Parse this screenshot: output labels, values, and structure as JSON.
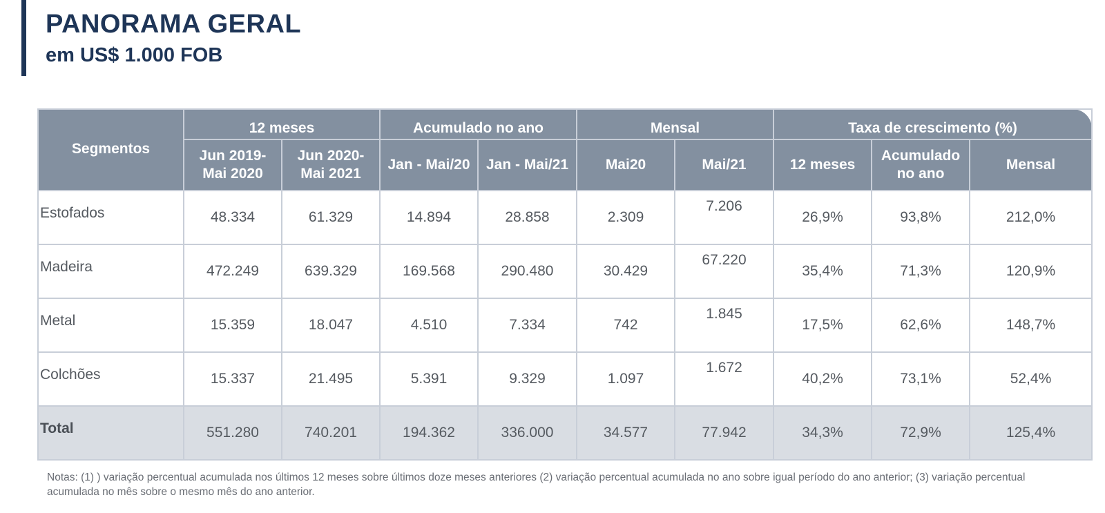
{
  "header": {
    "title": "PANORAMA GERAL",
    "subtitle": "em US$ 1.000 FOB"
  },
  "table": {
    "segment_header": "Segmentos",
    "groups": [
      "12 meses",
      "Acumulado no ano",
      "Mensal",
      "Taxa de crescimento (%)"
    ],
    "columns": [
      "Jun 2019-\nMai 2020",
      "Jun 2020-\nMai 2021",
      "Jan - Mai/20",
      "Jan - Mai/21",
      "Mai20",
      "Mai/21",
      "12 meses",
      "Acumulado\nno ano",
      "Mensal"
    ],
    "rows": [
      {
        "segment": "Estofados",
        "values": [
          "48.334",
          "61.329",
          "14.894",
          "28.858",
          "2.309",
          "7.206",
          "26,9%",
          "93,8%",
          "212,0%"
        ]
      },
      {
        "segment": "Madeira",
        "values": [
          "472.249",
          "639.329",
          "169.568",
          "290.480",
          "30.429",
          "67.220",
          "35,4%",
          "71,3%",
          "120,9%"
        ]
      },
      {
        "segment": "Metal",
        "values": [
          "15.359",
          "18.047",
          "4.510",
          "7.334",
          "742",
          "1.845",
          "17,5%",
          "62,6%",
          "148,7%"
        ]
      },
      {
        "segment": "Colchões",
        "values": [
          "15.337",
          "21.495",
          "5.391",
          "9.329",
          "1.097",
          "1.672",
          "40,2%",
          "73,1%",
          "52,4%"
        ]
      },
      {
        "segment": "Total",
        "values": [
          "551.280",
          "740.201",
          "194.362",
          "336.000",
          "34.577",
          "77.942",
          "34,3%",
          "72,9%",
          "125,4%"
        ]
      }
    ]
  },
  "notes": "Notas: (1) ) variação percentual acumulada nos últimos 12 meses sobre últimos doze meses anteriores (2) variação percentual acumulada no ano sobre igual período do ano anterior; (3) variação percentual acumulada no mês sobre o mesmo mês do ano anterior."
}
